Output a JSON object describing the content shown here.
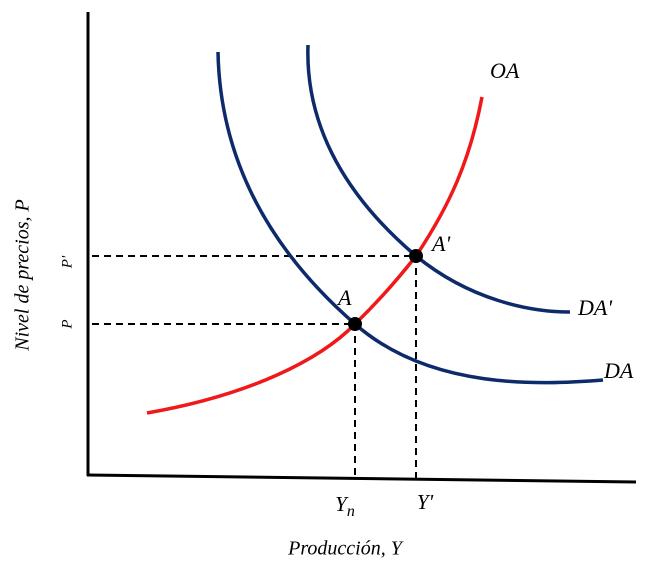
{
  "axes": {
    "y_label": "Nivel de precios, P",
    "x_label": "Producción, Y"
  },
  "curves": [
    {
      "label": "OA"
    },
    {
      "label": "DA'"
    },
    {
      "label": "DA"
    }
  ],
  "points": [
    {
      "label": "A"
    },
    {
      "label": "A'"
    }
  ],
  "price_ticks": [
    "P",
    "P'"
  ],
  "output_ticks": [
    {
      "base": "Y",
      "sub": "n"
    },
    {
      "base": "Y'"
    }
  ]
}
